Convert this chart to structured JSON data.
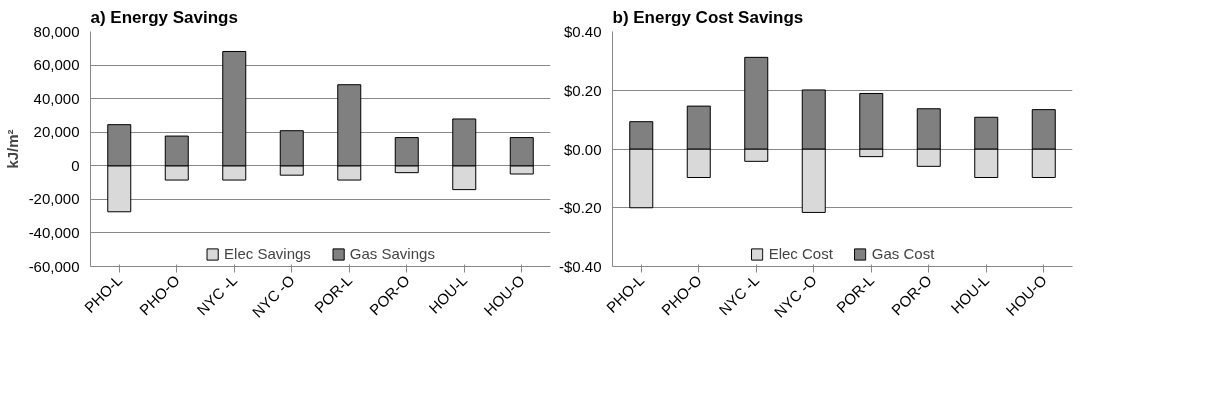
{
  "chart_data": [
    {
      "type": "bar",
      "title": "a) Energy Savings",
      "ylabel": "kJ/m²",
      "stacked": true,
      "grid": "y",
      "legend": "bottom",
      "categories": [
        "PHO-L",
        "PHO-O",
        "NYC -L",
        "NYC -O",
        "POR-L",
        "POR-O",
        "HOU-L",
        "HOU-O"
      ],
      "series": [
        {
          "name": "Elec Savings",
          "color": "#d9d9d9",
          "values": [
            -27400,
            -8500,
            -8500,
            -5600,
            -8500,
            -4100,
            -14200,
            -4900
          ]
        },
        {
          "name": "Gas Savings",
          "color": "#808080",
          "values": [
            24500,
            17700,
            68100,
            20900,
            48300,
            16800,
            27900,
            16800
          ]
        }
      ],
      "ylim": [
        -60000,
        80000
      ],
      "yticks": [
        {
          "value": -60000,
          "label": "-60,000"
        },
        {
          "value": -40000,
          "label": "-40,000"
        },
        {
          "value": -20000,
          "label": "-20,000"
        },
        0,
        {
          "value": 20000,
          "label": "20,000"
        },
        {
          "value": 40000,
          "label": "40,000"
        },
        {
          "value": 60000,
          "label": "60,000"
        },
        {
          "value": 80000,
          "label": "80,000"
        }
      ]
    },
    {
      "type": "bar",
      "title": "b) Energy Cost Savings",
      "stacked": true,
      "grid": "y",
      "legend": "bottom",
      "categories": [
        "PHO-L",
        "PHO-O",
        "NYC -L",
        "NYC -O",
        "POR-L",
        "POR-O",
        "HOU-L",
        "HOU-O"
      ],
      "series": [
        {
          "name": "Elec Cost",
          "color": "#d9d9d9",
          "values": [
            -0.2,
            -0.097,
            -0.042,
            -0.216,
            -0.026,
            -0.059,
            -0.097,
            -0.097
          ]
        },
        {
          "name": "Gas Cost",
          "color": "#808080",
          "values": [
            0.093,
            0.146,
            0.312,
            0.201,
            0.189,
            0.137,
            0.108,
            0.134
          ]
        }
      ],
      "ylim": [
        -0.4,
        0.4
      ],
      "yticks": [
        {
          "value": -0.4,
          "label": "-$0.40"
        },
        {
          "value": -0.2,
          "label": "-$0.20"
        },
        {
          "value": 0,
          "label": "$0.00"
        },
        {
          "value": 0.2,
          "label": "$0.20"
        },
        {
          "value": 0.4,
          "label": "$0.40"
        }
      ]
    }
  ]
}
